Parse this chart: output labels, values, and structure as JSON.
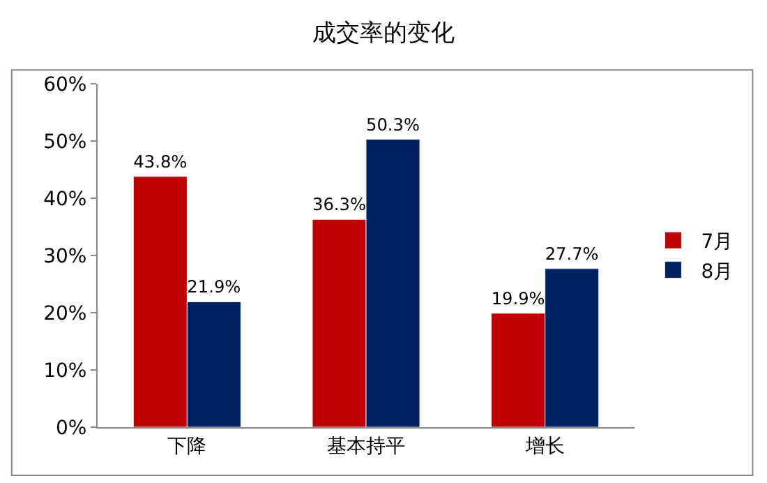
{
  "chart_data": {
    "type": "bar",
    "title": "成交率的变化",
    "categories": [
      "下降",
      "基本持平",
      "增长"
    ],
    "series": [
      {
        "name": "7月",
        "color": "#c00000",
        "values": [
          43.8,
          36.3,
          19.9
        ],
        "value_labels": [
          "43.8%",
          "36.3%",
          "19.9%"
        ]
      },
      {
        "name": "8月",
        "color": "#002060",
        "values": [
          21.9,
          50.3,
          27.7
        ],
        "value_labels": [
          "21.9%",
          "50.3%",
          "27.7%"
        ]
      }
    ],
    "ylim": [
      0,
      60
    ],
    "yticks": [
      {
        "value": 0,
        "label": "0%"
      },
      {
        "value": 10,
        "label": "10%"
      },
      {
        "value": 20,
        "label": "20%"
      },
      {
        "value": 30,
        "label": "30%"
      },
      {
        "value": 40,
        "label": "40%"
      },
      {
        "value": 50,
        "label": "50%"
      },
      {
        "value": 60,
        "label": "60%"
      }
    ],
    "legend": "right"
  }
}
